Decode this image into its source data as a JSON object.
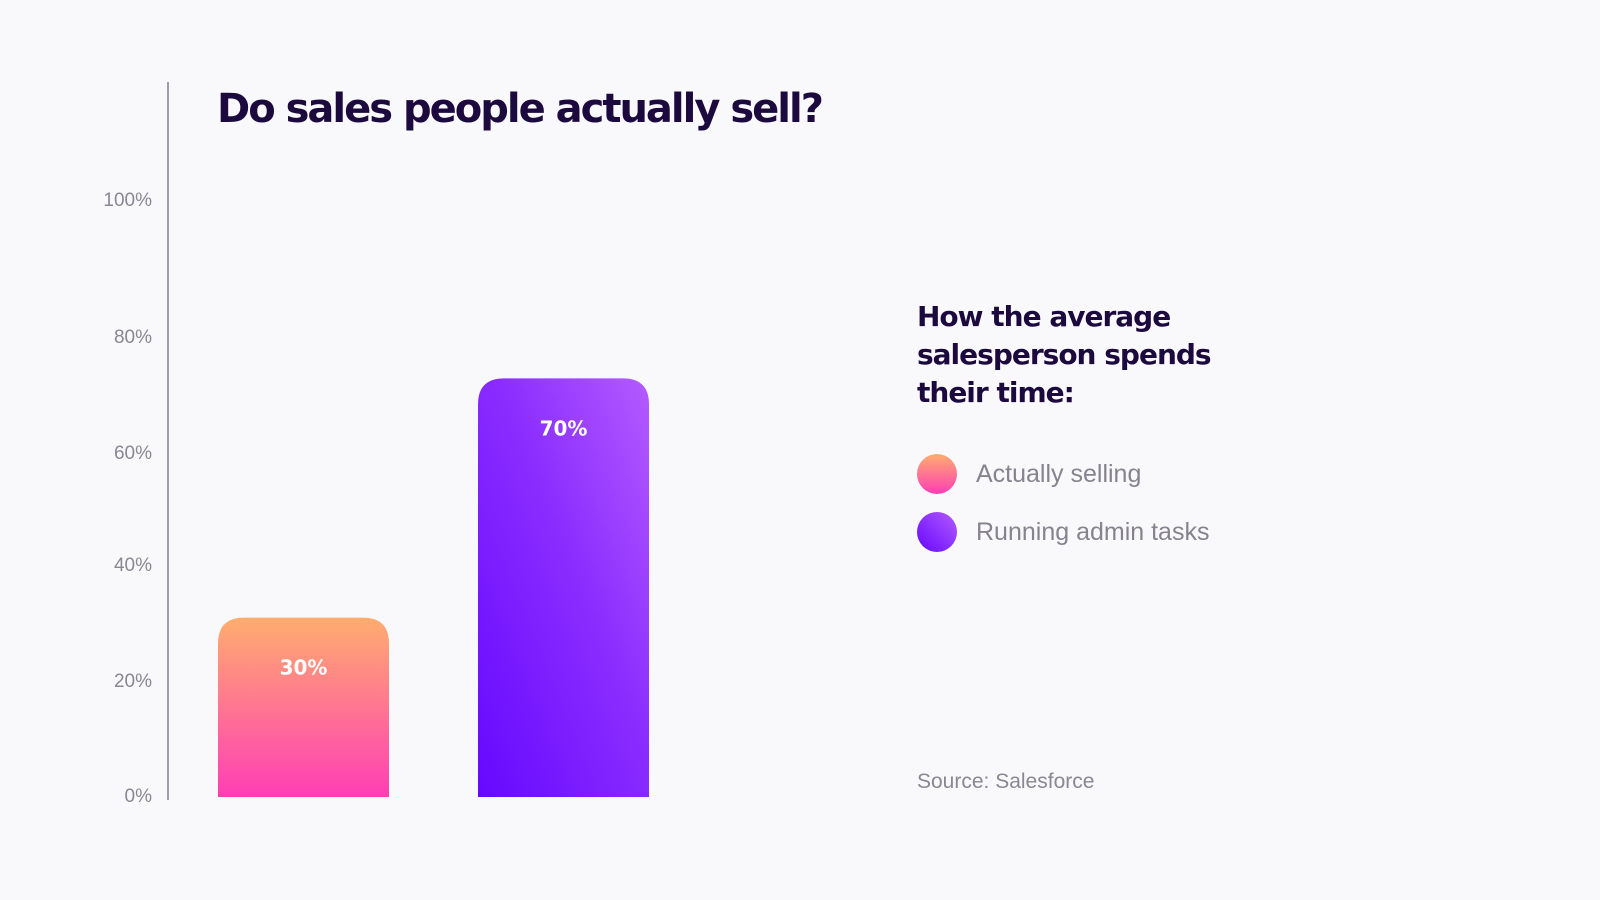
{
  "chart_data": {
    "type": "bar",
    "title": "Do sales people actually sell?",
    "categories": [
      "Actually selling",
      "Running admin tasks"
    ],
    "values": [
      30,
      70
    ],
    "value_labels": [
      "30%",
      "70%"
    ],
    "y_ticks": [
      "0%",
      "20%",
      "40%",
      "60%",
      "80%",
      "100%"
    ],
    "ylim": [
      0,
      100
    ],
    "grid": false,
    "legend_title": "How the average salesperson spends their time:",
    "legend_placement": "right",
    "source": "Source: Salesforce",
    "colors": {
      "actually_selling": [
        "#ffad6e",
        "#ff3eb5"
      ],
      "running_admin_tasks": [
        "#6508ff",
        "#b45bff"
      ],
      "title": "#1c0a3e",
      "axis": "#9e9ea6"
    }
  }
}
